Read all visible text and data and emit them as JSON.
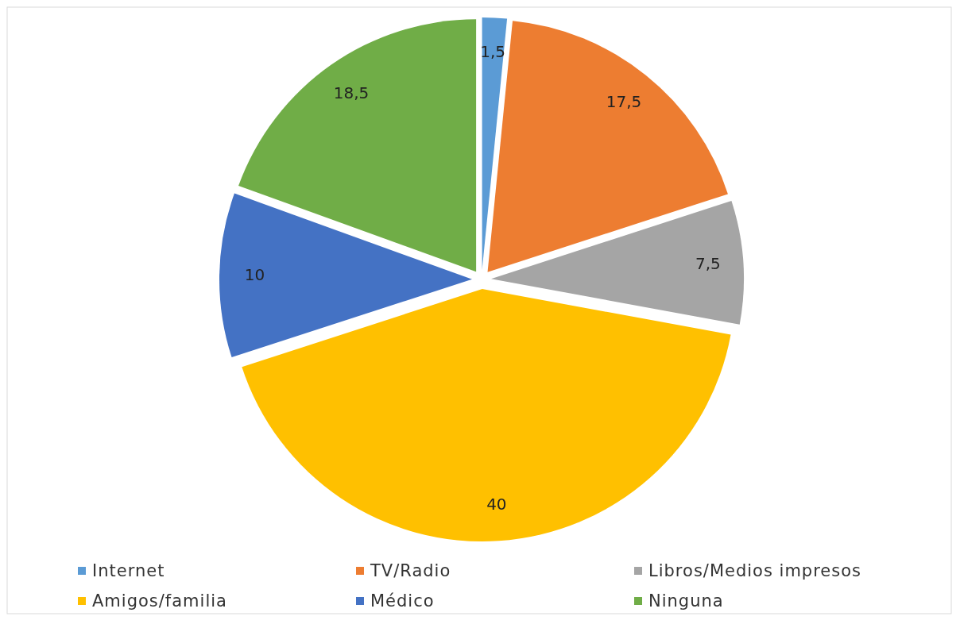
{
  "chart_data": {
    "type": "pie",
    "categories": [
      "Internet",
      "TV/Radio",
      "Libros/Medios impresos",
      "Amigos/familia",
      "Médico",
      "Ninguna"
    ],
    "values": [
      1.5,
      17.5,
      7.5,
      40,
      10,
      18.5
    ],
    "value_labels": [
      "1,5",
      "17,5",
      "7,5",
      "40",
      "10",
      "18,5"
    ],
    "colors": [
      "#5b9bd5",
      "#ed7d31",
      "#a5a5a5",
      "#ffc000",
      "#4472c4",
      "#70ad47"
    ],
    "legend": "bottom"
  }
}
